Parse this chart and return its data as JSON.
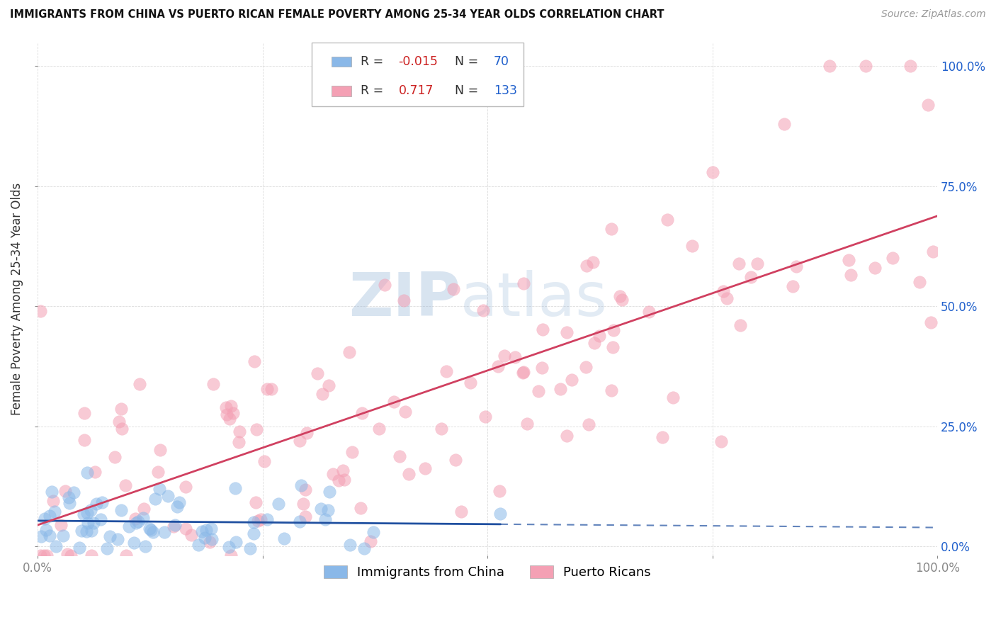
{
  "title": "IMMIGRANTS FROM CHINA VS PUERTO RICAN FEMALE POVERTY AMONG 25-34 YEAR OLDS CORRELATION CHART",
  "source": "Source: ZipAtlas.com",
  "ylabel": "Female Poverty Among 25-34 Year Olds",
  "watermark": "ZIPAtlas",
  "china_color": "#8ab8e8",
  "china_edge_color": "#6090c8",
  "pr_color": "#f4a0b4",
  "pr_edge_color": "#e06080",
  "china_line_color": "#2050a0",
  "pr_line_color": "#d04060",
  "china_R": -0.015,
  "china_N": 70,
  "pr_R": 0.717,
  "pr_N": 133,
  "xlim": [
    0,
    1.0
  ],
  "ylim": [
    -0.02,
    1.05
  ],
  "blue_label_color": "#2060cc",
  "red_label_color": "#cc2222",
  "text_color": "#333333",
  "source_color": "#999999",
  "grid_color": "#cccccc",
  "watermark_color": "#c8d8e8",
  "background_color": "#ffffff"
}
